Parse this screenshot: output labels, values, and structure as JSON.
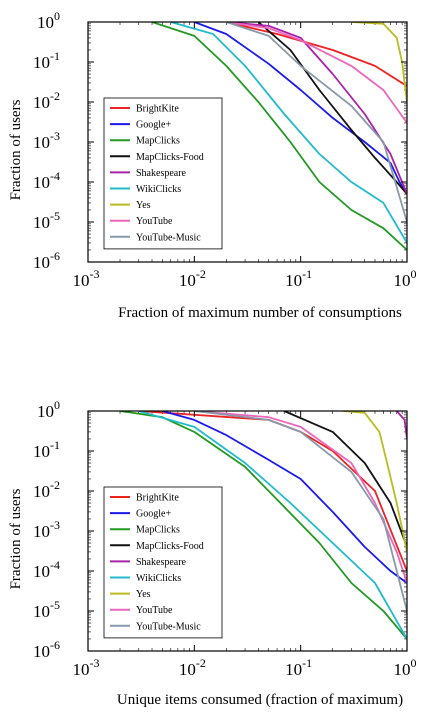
{
  "chart_data": [
    {
      "type": "line",
      "title": "",
      "xlabel": "Fraction of maximum number of consumptions",
      "ylabel": "Fraction of users",
      "xscale": "log",
      "yscale": "log",
      "xlim": [
        0.001,
        1
      ],
      "ylim": [
        1e-06,
        1
      ],
      "xticks": [
        {
          "base": "10",
          "exp": "-3"
        },
        {
          "base": "10",
          "exp": "-2"
        },
        {
          "base": "10",
          "exp": "-1"
        },
        {
          "base": "10",
          "exp": "0"
        }
      ],
      "yticks": [
        {
          "base": "10",
          "exp": "0"
        },
        {
          "base": "10",
          "exp": "-1"
        },
        {
          "base": "10",
          "exp": "-2"
        },
        {
          "base": "10",
          "exp": "-3"
        },
        {
          "base": "10",
          "exp": "-4"
        },
        {
          "base": "10",
          "exp": "-5"
        },
        {
          "base": "10",
          "exp": "-6"
        }
      ],
      "legend_position": "lower-left",
      "series": [
        {
          "name": "BrightKite",
          "color": "#ee2222",
          "points": [
            [
              0.02,
              1
            ],
            [
              0.06,
              0.5
            ],
            [
              0.2,
              0.2
            ],
            [
              0.5,
              0.08
            ],
            [
              1,
              0.025
            ]
          ]
        },
        {
          "name": "Google+",
          "color": "#1a1aee",
          "points": [
            [
              0.01,
              1
            ],
            [
              0.02,
              0.5
            ],
            [
              0.05,
              0.09
            ],
            [
              0.1,
              0.02
            ],
            [
              0.2,
              0.004
            ],
            [
              0.4,
              0.001
            ],
            [
              0.7,
              0.0003
            ],
            [
              0.85,
              0.0001
            ],
            [
              1,
              5e-05
            ]
          ]
        },
        {
          "name": "MapClicks",
          "color": "#229922",
          "points": [
            [
              0.004,
              1
            ],
            [
              0.01,
              0.45
            ],
            [
              0.02,
              0.08
            ],
            [
              0.04,
              0.01
            ],
            [
              0.08,
              0.001
            ],
            [
              0.15,
              0.0001
            ],
            [
              0.3,
              2e-05
            ],
            [
              0.6,
              7e-06
            ],
            [
              1,
              2e-06
            ]
          ]
        },
        {
          "name": "MapClicks-Food",
          "color": "#111111",
          "points": [
            [
              0.04,
              1
            ],
            [
              0.08,
              0.2
            ],
            [
              0.15,
              0.02
            ],
            [
              0.3,
              0.002
            ],
            [
              0.5,
              0.0004
            ],
            [
              0.8,
              0.0001
            ],
            [
              1,
              5e-05
            ]
          ]
        },
        {
          "name": "Shakespeare",
          "color": "#aa22aa",
          "points": [
            [
              0.02,
              1
            ],
            [
              0.05,
              0.8
            ],
            [
              0.1,
              0.4
            ],
            [
              0.2,
              0.05
            ],
            [
              0.4,
              0.005
            ],
            [
              0.7,
              0.0005
            ],
            [
              1,
              5e-05
            ]
          ]
        },
        {
          "name": "WikiClicks",
          "color": "#22bbcc",
          "points": [
            [
              0.006,
              1
            ],
            [
              0.015,
              0.5
            ],
            [
              0.03,
              0.08
            ],
            [
              0.07,
              0.005
            ],
            [
              0.15,
              0.0005
            ],
            [
              0.3,
              0.0001
            ],
            [
              0.6,
              3e-05
            ],
            [
              1,
              3e-06
            ]
          ]
        },
        {
          "name": "Yes",
          "color": "#bbbb22",
          "points": [
            [
              0.3,
              1
            ],
            [
              0.6,
              0.9
            ],
            [
              0.8,
              0.4
            ],
            [
              0.9,
              0.1
            ],
            [
              1,
              0.01
            ]
          ]
        },
        {
          "name": "YouTube",
          "color": "#ee66bb",
          "points": [
            [
              0.02,
              1
            ],
            [
              0.05,
              0.7
            ],
            [
              0.1,
              0.35
            ],
            [
              0.3,
              0.08
            ],
            [
              0.6,
              0.02
            ],
            [
              1,
              0.003
            ]
          ]
        },
        {
          "name": "YouTube-Music",
          "color": "#8899aa",
          "points": [
            [
              0.02,
              1
            ],
            [
              0.05,
              0.45
            ],
            [
              0.1,
              0.08
            ],
            [
              0.3,
              0.008
            ],
            [
              0.6,
              0.001
            ],
            [
              1,
              1e-05
            ]
          ]
        }
      ]
    },
    {
      "type": "line",
      "title": "",
      "xlabel": "Unique items consumed (fraction of maximum)",
      "ylabel": "Fraction of users",
      "xscale": "log",
      "yscale": "log",
      "xlim": [
        0.001,
        1
      ],
      "ylim": [
        1e-06,
        1
      ],
      "xticks": [
        {
          "base": "10",
          "exp": "-3"
        },
        {
          "base": "10",
          "exp": "-2"
        },
        {
          "base": "10",
          "exp": "-1"
        },
        {
          "base": "10",
          "exp": "0"
        }
      ],
      "yticks": [
        {
          "base": "10",
          "exp": "0"
        },
        {
          "base": "10",
          "exp": "-1"
        },
        {
          "base": "10",
          "exp": "-2"
        },
        {
          "base": "10",
          "exp": "-3"
        },
        {
          "base": "10",
          "exp": "-4"
        },
        {
          "base": "10",
          "exp": "-5"
        },
        {
          "base": "10",
          "exp": "-6"
        }
      ],
      "legend_position": "lower-left",
      "series": [
        {
          "name": "BrightKite",
          "color": "#ee2222",
          "points": [
            [
              0.003,
              1
            ],
            [
              0.05,
              0.6
            ],
            [
              0.1,
              0.3
            ],
            [
              0.2,
              0.1
            ],
            [
              0.5,
              0.01
            ],
            [
              1,
              0.0001
            ]
          ]
        },
        {
          "name": "Google+",
          "color": "#1a1aee",
          "points": [
            [
              0.005,
              1
            ],
            [
              0.01,
              0.6
            ],
            [
              0.02,
              0.25
            ],
            [
              0.05,
              0.06
            ],
            [
              0.1,
              0.02
            ],
            [
              0.2,
              0.003
            ],
            [
              0.4,
              0.0004
            ],
            [
              0.7,
              0.0001
            ],
            [
              1,
              5e-05
            ]
          ]
        },
        {
          "name": "MapClicks",
          "color": "#229922",
          "points": [
            [
              0.002,
              1
            ],
            [
              0.005,
              0.7
            ],
            [
              0.01,
              0.3
            ],
            [
              0.03,
              0.04
            ],
            [
              0.07,
              0.004
            ],
            [
              0.15,
              0.0005
            ],
            [
              0.3,
              5e-05
            ],
            [
              0.6,
              1e-05
            ],
            [
              1,
              2e-06
            ]
          ]
        },
        {
          "name": "MapClicks-Food",
          "color": "#111111",
          "points": [
            [
              0.07,
              1
            ],
            [
              0.2,
              0.3
            ],
            [
              0.4,
              0.05
            ],
            [
              0.7,
              0.005
            ],
            [
              1,
              0.0004
            ]
          ]
        },
        {
          "name": "Shakespeare",
          "color": "#aa22aa",
          "points": [
            [
              0.8,
              1
            ],
            [
              0.95,
              0.6
            ],
            [
              1,
              0.2
            ]
          ]
        },
        {
          "name": "WikiClicks",
          "color": "#22bbcc",
          "points": [
            [
              0.003,
              1
            ],
            [
              0.01,
              0.4
            ],
            [
              0.03,
              0.05
            ],
            [
              0.08,
              0.005
            ],
            [
              0.2,
              0.0005
            ],
            [
              0.5,
              5e-05
            ],
            [
              1,
              2e-06
            ]
          ]
        },
        {
          "name": "Yes",
          "color": "#bbbb22",
          "points": [
            [
              0.25,
              1
            ],
            [
              0.4,
              0.9
            ],
            [
              0.55,
              0.3
            ],
            [
              0.65,
              0.05
            ],
            [
              0.8,
              0.005
            ],
            [
              1,
              0.0003
            ]
          ]
        },
        {
          "name": "YouTube",
          "color": "#ee66bb",
          "points": [
            [
              0.01,
              1
            ],
            [
              0.05,
              0.7
            ],
            [
              0.1,
              0.4
            ],
            [
              0.3,
              0.05
            ],
            [
              0.5,
              0.005
            ],
            [
              0.8,
              0.0003
            ],
            [
              1,
              5e-05
            ]
          ]
        },
        {
          "name": "YouTube-Music",
          "color": "#8899aa",
          "points": [
            [
              0.01,
              1
            ],
            [
              0.05,
              0.6
            ],
            [
              0.1,
              0.3
            ],
            [
              0.3,
              0.03
            ],
            [
              0.6,
              0.002
            ],
            [
              1,
              1e-05
            ]
          ]
        }
      ]
    }
  ]
}
